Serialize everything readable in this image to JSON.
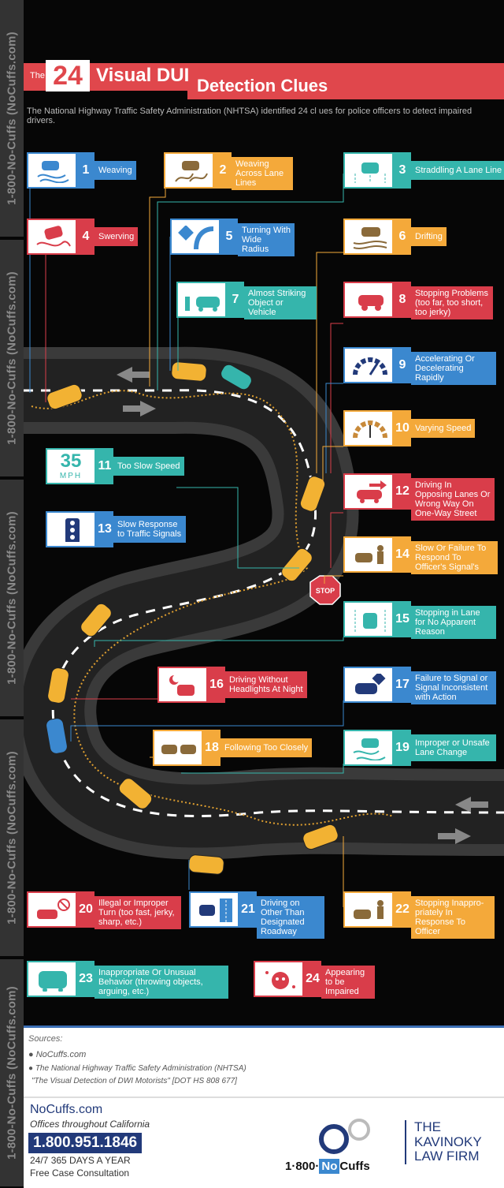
{
  "sidebar": {
    "text": "1-800-No-Cuffs (NoCuffs.com)"
  },
  "title": {
    "prefix": "The",
    "number": "24",
    "line1": "Visual DUI",
    "line2": "Detection Clues"
  },
  "subtitle": "The National Highway Traffic Safety Administration (NHTSA) identified 24 cl ues for police officers to detect impaired drivers.",
  "stop_sign": "STOP",
  "speed_sign": {
    "value": "35",
    "unit": "MPH"
  },
  "clues": [
    {
      "number": "1",
      "label": "Weaving",
      "color": "#3b88cf",
      "icon": "weaving-car-icon"
    },
    {
      "number": "2",
      "label": "Weaving Across Lane Lines",
      "color": "#f4a93a",
      "icon": "weaving-across-lanes-icon"
    },
    {
      "number": "3",
      "label": "Straddling A Lane Line",
      "color": "#35b5ac",
      "icon": "straddling-lane-icon"
    },
    {
      "number": "4",
      "label": "Swerving",
      "color": "#d93d4a",
      "icon": "swerving-car-icon"
    },
    {
      "number": "5",
      "label": "Turning With Wide Radius",
      "color": "#3b88cf",
      "icon": "wide-turn-icon"
    },
    {
      "number": "6",
      "label": "Drifting",
      "color": "#f4a93a",
      "icon": "drifting-car-icon"
    },
    {
      "number": "7",
      "label": "Almost Striking Object or Vehicle",
      "color": "#35b5ac",
      "icon": "near-collision-icon"
    },
    {
      "number": "8",
      "label": "Stopping Problems (too far, too short, too jerky)",
      "color": "#d93d4a",
      "icon": "stopping-car-icon"
    },
    {
      "number": "9",
      "label": "Accelerating Or Decelerating Rapidly",
      "color": "#3b88cf",
      "icon": "speedometer-icon"
    },
    {
      "number": "10",
      "label": "Varying Speed",
      "color": "#f4a93a",
      "icon": "speed-gauge-icon"
    },
    {
      "number": "11",
      "label": "Too Slow Speed",
      "color": "#35b5ac",
      "icon": "speed-limit-sign-icon"
    },
    {
      "number": "12",
      "label": "Driving In Opposing Lanes Or Wrong Way On One-Way Street",
      "color": "#d93d4a",
      "icon": "wrong-way-icon"
    },
    {
      "number": "13",
      "label": "Slow Response to Traffic Signals",
      "color": "#3b88cf",
      "icon": "traffic-light-icon"
    },
    {
      "number": "14",
      "label": "Slow Or Failure To Respond To Officer's Signal's",
      "color": "#f4a93a",
      "icon": "officer-signal-icon"
    },
    {
      "number": "15",
      "label": "Stopping in Lane for No Apparent Reason",
      "color": "#35b5ac",
      "icon": "stopped-in-lane-icon"
    },
    {
      "number": "16",
      "label": "Driving Without Headlights At Night",
      "color": "#d93d4a",
      "icon": "night-driving-icon"
    },
    {
      "number": "17",
      "label": "Failure to Signal or Signal Inconsistent with Action",
      "color": "#3b88cf",
      "icon": "turn-signal-icon"
    },
    {
      "number": "18",
      "label": "Following Too Closely",
      "color": "#f4a93a",
      "icon": "tailgating-icon"
    },
    {
      "number": "19",
      "label": "Improper or Unsafe Lane Change",
      "color": "#35b5ac",
      "icon": "lane-change-icon"
    },
    {
      "number": "20",
      "label": "Illegal or Improper Turn (too fast, jerky, sharp, etc.)",
      "color": "#d93d4a",
      "icon": "illegal-turn-icon"
    },
    {
      "number": "21",
      "label": "Driving on Other Than Designated Roadway",
      "color": "#3b88cf",
      "icon": "off-road-icon"
    },
    {
      "number": "22",
      "label": "Stopping Inappro- priately In Response To Officer",
      "color": "#f4a93a",
      "icon": "officer-stop-icon"
    },
    {
      "number": "23",
      "label": "Inappropriate Or Unusual Behavior (throwing objects, arguing, etc.)",
      "color": "#35b5ac",
      "icon": "unusual-behavior-icon"
    },
    {
      "number": "24",
      "label": "Appearing to be Impaired",
      "color": "#d93d4a",
      "icon": "impaired-face-icon"
    }
  ],
  "sources": {
    "title": "Sources:",
    "items": [
      "NoCuffs.com",
      "The National Highway Traffic Safety Administration (NHTSA)"
    ],
    "citation": "\"The Visual Detection of DWI Motorists\" [DOT HS 808 677]"
  },
  "footer": {
    "site": "NoCuffs.com",
    "offices": "Offices throughout California",
    "phone": "1.800.951.1846",
    "availability": "24/7 365 DAYS A YEAR",
    "consultation": "Free Case Consultation",
    "brand_prefix": "1·800·",
    "brand_highlight": "No",
    "brand_suffix": "Cuffs",
    "firm": [
      "THE",
      "KAVINOKY",
      "LAW FIRM"
    ]
  }
}
